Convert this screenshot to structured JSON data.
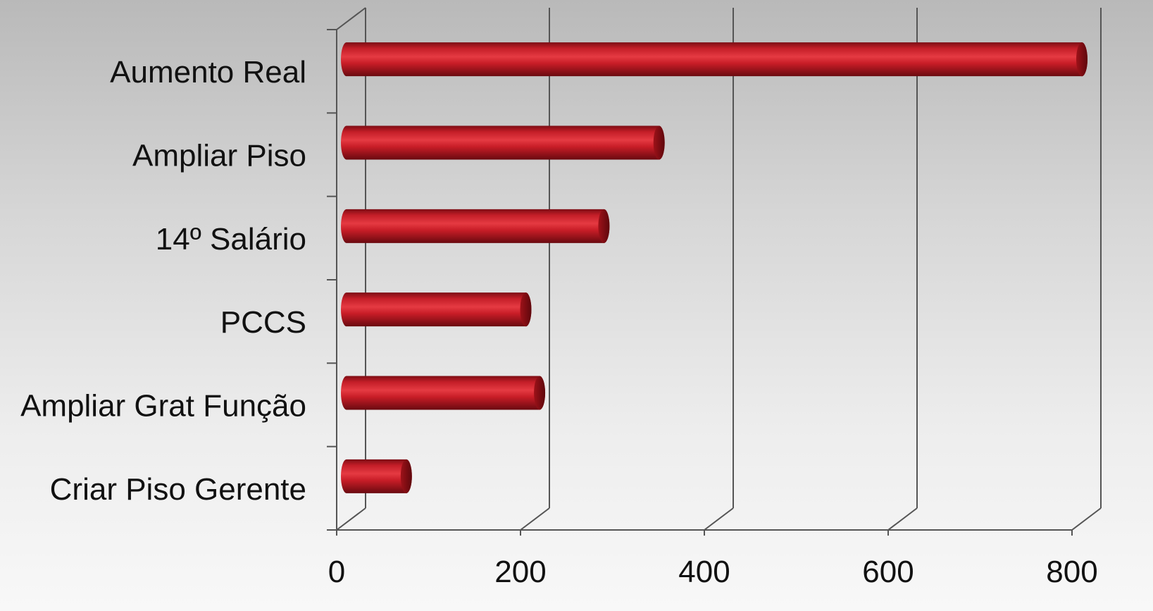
{
  "chart_data": {
    "type": "bar",
    "orientation": "horizontal",
    "style": "3d-cylinder",
    "categories": [
      "Aumento Real",
      "Ampliar Piso",
      "14º Salário",
      "PCCS",
      "Ampliar Grat Função",
      "Criar Piso Gerente"
    ],
    "values": [
      800,
      340,
      280,
      195,
      210,
      65
    ],
    "xlim": [
      0,
      800
    ],
    "x_ticks": [
      "0",
      "200",
      "400",
      "600",
      "800"
    ],
    "x_tick_values": [
      0,
      200,
      400,
      600,
      800
    ],
    "grid": true,
    "legend": "none",
    "colors": {
      "bar": "#c8202a",
      "bar_dark": "#7a0d13",
      "grid": "#555555"
    }
  }
}
